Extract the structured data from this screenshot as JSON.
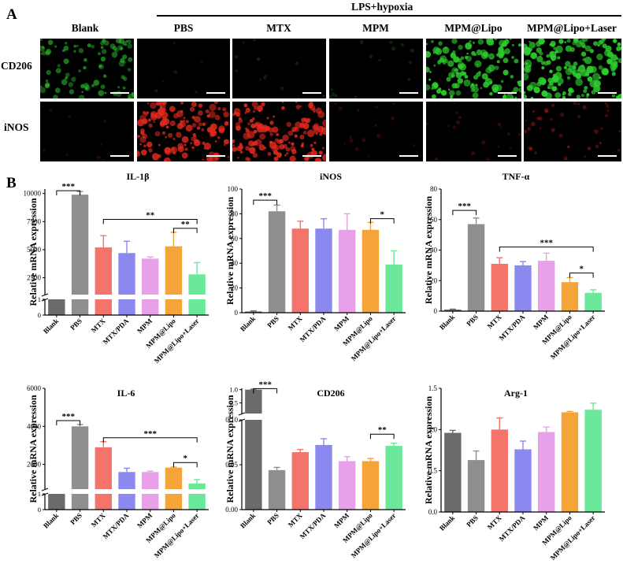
{
  "panel_a": {
    "letter": "A",
    "group_header": "LPS+hypoxia",
    "columns": [
      "Blank",
      "PBS",
      "MTX",
      "MPM",
      "MPM@Lipo",
      "MPM@Lipo+Laser"
    ],
    "rows": [
      {
        "label": "CD206",
        "color": "#2ecc2e",
        "levels": [
          0.55,
          0.0,
          0.04,
          0.05,
          0.9,
          1.0
        ]
      },
      {
        "label": "iNOS",
        "color": "#e82a1e",
        "levels": [
          0.02,
          0.85,
          0.9,
          0.06,
          0.08,
          0.22
        ]
      }
    ]
  },
  "panel_b_letter": "B",
  "group_colors": [
    "#6b6b6b",
    "#8f8f8f",
    "#f4736b",
    "#8b89f0",
    "#e8a0e8",
    "#f5a43a",
    "#6be89a"
  ],
  "chart_data": [
    {
      "type": "bar",
      "title": "IL-1β",
      "ylabel": "Relative mRNA expression",
      "categories": [
        "Blank",
        "PBS",
        "MTX",
        "MTX/PDA",
        "MPM",
        "MPM@Lipo",
        "MPM@Lipo+Laser"
      ],
      "values": [
        1,
        9900,
        5200,
        4700,
        4200,
        5300,
        2800
      ],
      "errors": [
        0.1,
        280,
        1050,
        1050,
        150,
        1250,
        1050
      ],
      "axis_break": true,
      "lower_ylim": [
        0,
        1
      ],
      "lower_yticks": [
        "0",
        "1"
      ],
      "ylim": [
        1000,
        10400
      ],
      "yticks": [
        2500,
        5000,
        7500,
        10000
      ],
      "significance": [
        {
          "from": 0,
          "to": 1,
          "label": "***",
          "level": 10250
        },
        {
          "from": 2,
          "to": 6,
          "label": "**",
          "level": 7700
        },
        {
          "from": 5,
          "to": 6,
          "label": "**",
          "level": 6900
        }
      ]
    },
    {
      "type": "bar",
      "title": "iNOS",
      "ylabel": "Relative mRNA expression",
      "categories": [
        "Blank",
        "PBS",
        "MTX",
        "MTX/PDA",
        "MPM",
        "MPM@Lipo",
        "MPM@Lipo+Laser"
      ],
      "values": [
        1,
        82,
        68,
        68,
        67,
        67,
        39
      ],
      "errors": [
        0.5,
        5,
        6,
        8,
        13,
        6,
        11
      ],
      "axis_break": false,
      "ylim": [
        0,
        100
      ],
      "yticks": [
        0,
        20,
        40,
        60,
        80,
        100
      ],
      "significance": [
        {
          "from": 0,
          "to": 1,
          "label": "***",
          "level": 91
        },
        {
          "from": 5,
          "to": 6,
          "label": "*",
          "level": 76
        }
      ]
    },
    {
      "type": "bar",
      "title": "TNF-α",
      "ylabel": "Relative mRNA expression",
      "categories": [
        "Blank",
        "PBS",
        "MTX",
        "MTX/PDA",
        "MPM",
        "MPM@Lipo",
        "MPM@Lipo+Laser"
      ],
      "values": [
        1,
        57,
        31,
        30,
        33,
        19,
        12
      ],
      "errors": [
        0.3,
        4,
        4,
        2.5,
        5,
        3,
        2
      ],
      "axis_break": false,
      "ylim": [
        0,
        80
      ],
      "yticks": [
        0,
        20,
        40,
        60,
        80
      ],
      "significance": [
        {
          "from": 0,
          "to": 1,
          "label": "***",
          "level": 66
        },
        {
          "from": 2,
          "to": 6,
          "label": "***",
          "level": 42
        },
        {
          "from": 5,
          "to": 6,
          "label": "*",
          "level": 25
        }
      ]
    },
    {
      "type": "bar",
      "title": "IL-6",
      "ylabel": "Relative mRNA expression",
      "categories": [
        "Blank",
        "PBS",
        "MTX",
        "MTX/PDA",
        "MPM",
        "MPM@Lipo",
        "MPM@Lipo+Laser"
      ],
      "values": [
        1,
        4000,
        2900,
        1600,
        1600,
        1830,
        1000
      ],
      "errors": [
        0.1,
        100,
        300,
        200,
        50,
        30,
        200
      ],
      "axis_break": true,
      "lower_ylim": [
        0,
        1
      ],
      "lower_yticks": [
        "0",
        "1"
      ],
      "ylim": [
        700,
        6000
      ],
      "yticks": [
        2000,
        4000,
        6000
      ],
      "significance": [
        {
          "from": 0,
          "to": 1,
          "label": "***",
          "level": 4300
        },
        {
          "from": 2,
          "to": 6,
          "label": "***",
          "level": 3400
        },
        {
          "from": 5,
          "to": 6,
          "label": "*",
          "level": 2100
        }
      ]
    },
    {
      "type": "bar",
      "title": "CD206",
      "ylabel": "Relative mRNA expression",
      "categories": [
        "Blank",
        "PBS",
        "MTX",
        "MTX/PDA",
        "MPM",
        "MPM@Lipo",
        "MPM@Lipo+Laser"
      ],
      "values": [
        1.0,
        0.044,
        0.064,
        0.072,
        0.054,
        0.054,
        0.071
      ],
      "errors": [
        0.02,
        0.003,
        0.003,
        0.007,
        0.005,
        0.003,
        0.003
      ],
      "axis_break": true,
      "upper_break": true,
      "upper_ylim": [
        0.1,
        1.05
      ],
      "upper_yticks": [
        "0.5",
        "1.0"
      ],
      "ylim": [
        0,
        0.1
      ],
      "yticks": [
        "0.00",
        "0.05",
        "0.10"
      ],
      "significance": [
        {
          "from": 0,
          "to": 1,
          "label": "***",
          "level": 1.04
        },
        {
          "from": 5,
          "to": 6,
          "label": "**",
          "level": 0.084
        }
      ]
    },
    {
      "type": "bar",
      "title": "Arg-1",
      "ylabel": "Relative mRNA expression",
      "categories": [
        "Blank",
        "PBS",
        "MTX",
        "MTX/PDA",
        "MPM",
        "MPM@Lipo",
        "MPM@Lipo+Laser"
      ],
      "values": [
        0.96,
        0.63,
        1.0,
        0.76,
        0.97,
        1.21,
        1.24
      ],
      "errors": [
        0.03,
        0.11,
        0.14,
        0.1,
        0.06,
        0.01,
        0.08
      ],
      "axis_break": false,
      "ylim": [
        0,
        1.5
      ],
      "yticks": [
        "0.0",
        "0.5",
        "1.0",
        "1.5"
      ],
      "significance": []
    }
  ]
}
